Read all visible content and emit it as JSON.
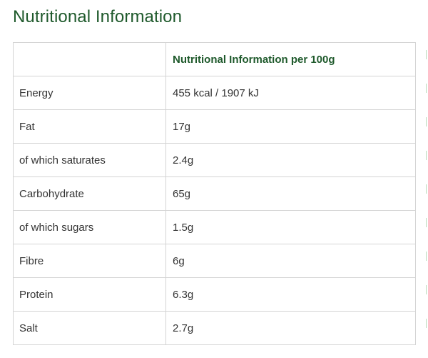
{
  "page": {
    "title": "Nutritional Information"
  },
  "table": {
    "header": {
      "label": "",
      "value": "Nutritional Information per 100g"
    },
    "rows": [
      {
        "label": "Energy",
        "value": "455 kcal / 1907 kJ"
      },
      {
        "label": "Fat",
        "value": "17g"
      },
      {
        "label": "of which saturates",
        "value": "2.4g"
      },
      {
        "label": "Carbohydrate",
        "value": "65g"
      },
      {
        "label": "of which sugars",
        "value": "1.5g"
      },
      {
        "label": "Fibre",
        "value": "6g"
      },
      {
        "label": "Protein",
        "value": "6.3g"
      },
      {
        "label": "Salt",
        "value": "2.7g"
      }
    ]
  },
  "colors": {
    "heading": "#1f5a2c",
    "text": "#333333",
    "border": "#d4d4d4"
  }
}
